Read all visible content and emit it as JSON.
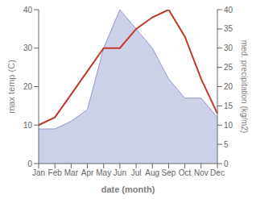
{
  "chart_data": {
    "type": "line",
    "xlabel": "date (month)",
    "ylabel": "max temp (C)",
    "y2label": "med. precipitation (kg/m2)",
    "categories": [
      "Jan",
      "Feb",
      "Mar",
      "Apr",
      "May",
      "Jun",
      "Jul",
      "Aug",
      "Sep",
      "Oct",
      "Nov",
      "Dec"
    ],
    "series": [
      {
        "type": "area",
        "axis": "y2",
        "color": "#9098cc",
        "values": [
          9,
          9,
          11,
          14,
          30,
          40,
          35,
          30,
          22,
          17,
          17,
          12
        ]
      },
      {
        "type": "line",
        "axis": "y",
        "color": "#c0392b",
        "values": [
          10,
          12,
          18,
          24,
          30,
          30,
          35,
          38,
          40,
          33,
          22,
          13
        ]
      }
    ],
    "ylim": [
      0,
      40
    ],
    "yticks": [
      0,
      10,
      20,
      30,
      40
    ],
    "y2lim": [
      0,
      40
    ],
    "y2ticks": [
      0,
      5,
      10,
      15,
      20,
      25,
      30,
      35,
      40
    ],
    "grid": false
  }
}
